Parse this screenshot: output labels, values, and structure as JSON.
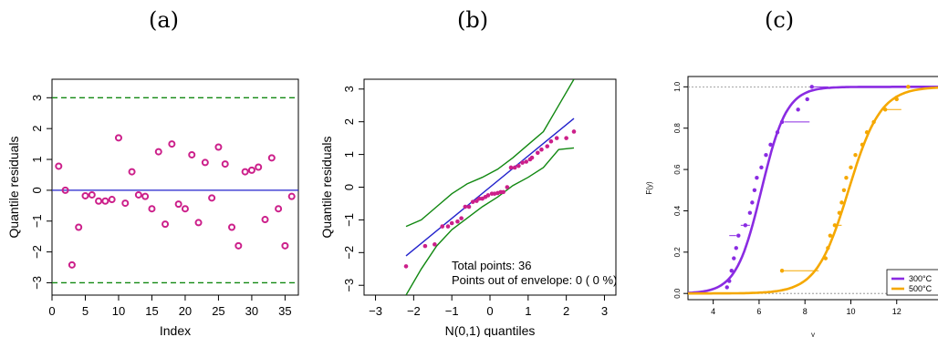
{
  "panels": {
    "a": "(a)",
    "b": "(b)",
    "c": "(c)"
  },
  "chart_data": [
    {
      "type": "scatter",
      "xlabel": "Index",
      "ylabel": "Quantile residuals",
      "xlim": [
        0,
        37
      ],
      "ylim": [
        -3.4,
        3.6
      ],
      "xticks": [
        "0",
        "5",
        "10",
        "15",
        "20",
        "25",
        "30",
        "35"
      ],
      "yticks": [
        "−3",
        "−2",
        "−1",
        "0",
        "1",
        "2",
        "3"
      ],
      "hlines": [
        {
          "y": 0,
          "color": "#2222cc",
          "style": "solid"
        },
        {
          "y": 3,
          "color": "#118811",
          "style": "dashed"
        },
        {
          "y": -3,
          "color": "#118811",
          "style": "dashed"
        }
      ],
      "point_color": "#cc1f8a",
      "x": [
        1,
        2,
        3,
        4,
        5,
        6,
        7,
        8,
        9,
        10,
        11,
        12,
        13,
        14,
        15,
        16,
        17,
        18,
        19,
        20,
        21,
        22,
        23,
        24,
        25,
        26,
        27,
        28,
        29,
        30,
        31,
        32,
        33,
        34,
        35,
        36
      ],
      "y": [
        0.78,
        0.0,
        -2.42,
        -1.2,
        -0.18,
        -0.15,
        -0.35,
        -0.35,
        -0.3,
        1.7,
        -0.42,
        0.6,
        -0.15,
        -0.2,
        -0.6,
        1.25,
        -1.1,
        1.5,
        -0.45,
        -0.6,
        1.15,
        -1.05,
        0.9,
        -0.25,
        1.4,
        0.85,
        -1.2,
        -1.8,
        0.6,
        0.65,
        0.75,
        -0.95,
        1.05,
        -0.6,
        -1.8,
        -0.2
      ]
    },
    {
      "type": "scatter",
      "xlabel": "N(0,1) quantiles",
      "ylabel": "Quantile residuals",
      "xlim": [
        -3.3,
        3.3
      ],
      "ylim": [
        -3.3,
        3.3
      ],
      "xticks": [
        "−3",
        "−2",
        "−1",
        "0",
        "1",
        "2",
        "3"
      ],
      "yticks": [
        "−3",
        "−2",
        "−1",
        "0",
        "1",
        "2",
        "3"
      ],
      "annotation": [
        "Total points: 36",
        "Points out of envelope: 0 ( 0 %)"
      ],
      "point_color": "#cc1f8a",
      "line_color": "#2222cc",
      "envelope_color": "#118811",
      "points": [
        [
          -2.2,
          -2.42
        ],
        [
          -1.7,
          -1.8
        ],
        [
          -1.45,
          -1.75
        ],
        [
          -1.25,
          -1.2
        ],
        [
          -1.1,
          -1.2
        ],
        [
          -1.0,
          -1.1
        ],
        [
          -0.85,
          -1.05
        ],
        [
          -0.75,
          -0.95
        ],
        [
          -0.65,
          -0.6
        ],
        [
          -0.55,
          -0.6
        ],
        [
          -0.45,
          -0.45
        ],
        [
          -0.35,
          -0.42
        ],
        [
          -0.28,
          -0.35
        ],
        [
          -0.2,
          -0.35
        ],
        [
          -0.12,
          -0.3
        ],
        [
          -0.05,
          -0.25
        ],
        [
          0.05,
          -0.2
        ],
        [
          0.12,
          -0.2
        ],
        [
          0.2,
          -0.18
        ],
        [
          0.28,
          -0.15
        ],
        [
          0.35,
          -0.15
        ],
        [
          0.45,
          0.0
        ],
        [
          0.55,
          0.6
        ],
        [
          0.65,
          0.6
        ],
        [
          0.75,
          0.65
        ],
        [
          0.85,
          0.75
        ],
        [
          0.95,
          0.78
        ],
        [
          1.05,
          0.85
        ],
        [
          1.1,
          0.9
        ],
        [
          1.25,
          1.05
        ],
        [
          1.35,
          1.15
        ],
        [
          1.5,
          1.25
        ],
        [
          1.6,
          1.4
        ],
        [
          1.75,
          1.5
        ],
        [
          2.0,
          1.5
        ],
        [
          2.2,
          1.7
        ]
      ],
      "reference_line": [
        [
          -2.2,
          -2.1
        ],
        [
          2.2,
          2.1
        ]
      ],
      "envelope_upper": [
        [
          -2.2,
          -1.2
        ],
        [
          -1.8,
          -1.0
        ],
        [
          -1.4,
          -0.6
        ],
        [
          -1.0,
          -0.2
        ],
        [
          -0.6,
          0.1
        ],
        [
          -0.2,
          0.3
        ],
        [
          0.2,
          0.55
        ],
        [
          0.6,
          0.9
        ],
        [
          1.0,
          1.3
        ],
        [
          1.4,
          1.7
        ],
        [
          1.8,
          2.5
        ],
        [
          2.2,
          3.3
        ]
      ],
      "envelope_lower": [
        [
          -2.2,
          -3.3
        ],
        [
          -1.8,
          -2.5
        ],
        [
          -1.4,
          -1.8
        ],
        [
          -1.0,
          -1.3
        ],
        [
          -0.6,
          -0.95
        ],
        [
          -0.2,
          -0.6
        ],
        [
          0.2,
          -0.3
        ],
        [
          0.6,
          0.05
        ],
        [
          1.0,
          0.3
        ],
        [
          1.4,
          0.6
        ],
        [
          1.8,
          1.15
        ],
        [
          2.2,
          1.2
        ]
      ]
    },
    {
      "type": "line",
      "xlabel": "y",
      "ylabel": "F(y)",
      "xlim": [
        2.9,
        13.8
      ],
      "ylim": [
        -0.03,
        1.05
      ],
      "xticks": [
        "4",
        "6",
        "8",
        "10",
        "12"
      ],
      "yticks": [
        "0.0",
        "0.2",
        "0.4",
        "0.6",
        "0.8",
        "1.0"
      ],
      "legend_placement": "bottom-right",
      "series": [
        {
          "name": "300°C",
          "color": "#8a2be2",
          "points": [
            [
              4.6,
              0.03
            ],
            [
              4.7,
              0.06
            ],
            [
              4.8,
              0.11
            ],
            [
              4.9,
              0.17
            ],
            [
              5.0,
              0.22
            ],
            [
              5.1,
              0.28
            ],
            [
              5.4,
              0.33
            ],
            [
              5.6,
              0.39
            ],
            [
              5.7,
              0.44
            ],
            [
              5.8,
              0.5
            ],
            [
              5.9,
              0.56
            ],
            [
              6.1,
              0.61
            ],
            [
              6.3,
              0.67
            ],
            [
              6.5,
              0.72
            ],
            [
              6.8,
              0.78
            ],
            [
              7.0,
              0.83
            ],
            [
              7.7,
              0.89
            ],
            [
              8.1,
              0.94
            ],
            [
              8.3,
              1.0
            ]
          ],
          "censored": [
            [
              4.7,
              0.28,
              5.0
            ],
            [
              5.2,
              0.33,
              5.6
            ],
            [
              7.1,
              0.83,
              8.2
            ],
            [
              8.3,
              1.0,
              9.0
            ]
          ]
        },
        {
          "name": "500°C",
          "color": "#f5a800",
          "points": [
            [
              7.0,
              0.11
            ],
            [
              8.9,
              0.17
            ],
            [
              9.0,
              0.22
            ],
            [
              9.1,
              0.28
            ],
            [
              9.3,
              0.33
            ],
            [
              9.5,
              0.39
            ],
            [
              9.6,
              0.44
            ],
            [
              9.7,
              0.5
            ],
            [
              9.8,
              0.56
            ],
            [
              10.0,
              0.61
            ],
            [
              10.2,
              0.67
            ],
            [
              10.5,
              0.72
            ],
            [
              10.7,
              0.78
            ],
            [
              11.0,
              0.83
            ],
            [
              11.5,
              0.89
            ],
            [
              12.0,
              0.94
            ],
            [
              12.5,
              1.0
            ]
          ],
          "censored": [
            [
              7.0,
              0.11,
              8.6
            ],
            [
              9.3,
              0.33,
              9.6
            ],
            [
              11.5,
              0.89,
              12.2
            ]
          ]
        }
      ]
    }
  ]
}
